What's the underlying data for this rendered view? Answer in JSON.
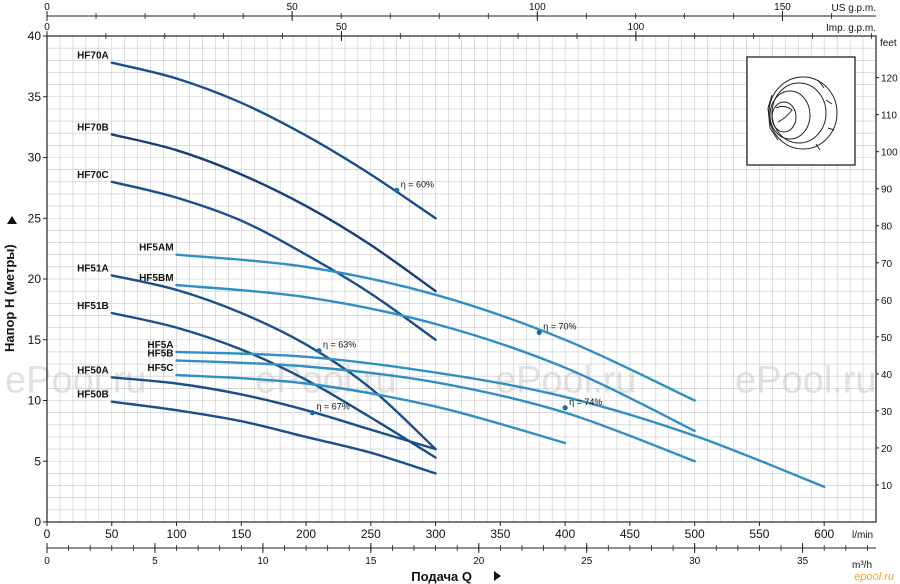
{
  "chart_data": {
    "type": "line",
    "title": "",
    "xlabel": "Подача Q",
    "ylabel": "Напор H (метры)",
    "x_unit": "l/min",
    "x_unit_m3h": "m³/h",
    "right_unit": "feet",
    "top_unit_us": "US g.p.m.",
    "top_unit_imp": "Imp. g.p.m.",
    "xlim": [
      0,
      640
    ],
    "ylim": [
      0,
      40
    ],
    "x_ticks": [
      0,
      50,
      100,
      150,
      200,
      250,
      300,
      350,
      400,
      450,
      500,
      550,
      600
    ],
    "y_ticks": [
      0,
      5,
      10,
      15,
      20,
      25,
      30,
      35,
      40
    ],
    "m3h_ticks": [
      0,
      5,
      10,
      15,
      20,
      25,
      30,
      35
    ],
    "feet_ticks": [
      10,
      20,
      30,
      40,
      50,
      60,
      70,
      80,
      90,
      100,
      110,
      120
    ],
    "us_gpm_ticks": [
      0,
      50,
      100,
      150
    ],
    "imp_gpm_ticks": [
      0,
      50,
      100
    ],
    "grid": true,
    "series": [
      {
        "name": "HF70A",
        "color": "#1a4f8a",
        "x": [
          50,
          100,
          150,
          200,
          250,
          300
        ],
        "y": [
          37.8,
          36.5,
          34.5,
          31.8,
          28.6,
          25
        ]
      },
      {
        "name": "HF70B",
        "color": "#183e78",
        "x": [
          50,
          100,
          150,
          200,
          250,
          300
        ],
        "y": [
          31.9,
          30.6,
          28.6,
          26.0,
          22.8,
          19
        ]
      },
      {
        "name": "HF70C",
        "color": "#1a4f8a",
        "x": [
          50,
          100,
          150,
          200,
          250,
          300
        ],
        "y": [
          28.0,
          26.7,
          24.8,
          22.0,
          18.8,
          15
        ]
      },
      {
        "name": "HF5AM",
        "color": "#2f8fc4",
        "x": [
          100,
          200,
          300,
          400,
          500
        ],
        "y": [
          22.0,
          21.0,
          18.7,
          15.0,
          10.0
        ]
      },
      {
        "name": "HF5BM",
        "color": "#2f8fc4",
        "x": [
          100,
          200,
          300,
          400,
          500
        ],
        "y": [
          19.5,
          18.5,
          16.3,
          12.7,
          7.5
        ]
      },
      {
        "name": "HF51A",
        "color": "#1a4f8a",
        "x": [
          50,
          100,
          150,
          200,
          250,
          300
        ],
        "y": [
          20.3,
          19.1,
          17.2,
          14.6,
          11.0,
          6.0
        ]
      },
      {
        "name": "HF51B",
        "color": "#1a4f8a",
        "x": [
          50,
          100,
          150,
          200,
          250,
          300
        ],
        "y": [
          17.2,
          16.0,
          14.2,
          11.7,
          8.6,
          5.3
        ]
      },
      {
        "name": "HF5A",
        "color": "#2f8fc4",
        "x": [
          100,
          200,
          300,
          400,
          500,
          600
        ],
        "y": [
          14.0,
          13.6,
          12.3,
          10.3,
          7.1,
          2.9
        ]
      },
      {
        "name": "HF5B",
        "color": "#2f8fc4",
        "x": [
          100,
          200,
          300,
          400,
          500
        ],
        "y": [
          13.3,
          12.8,
          11.5,
          9.0,
          5.0
        ]
      },
      {
        "name": "HF5C",
        "color": "#2f8fc4",
        "x": [
          100,
          200,
          300,
          400
        ],
        "y": [
          12.1,
          11.4,
          9.5,
          6.5
        ]
      },
      {
        "name": "HF50A",
        "color": "#1a4f8a",
        "x": [
          50,
          100,
          150,
          200,
          250,
          300
        ],
        "y": [
          11.9,
          11.4,
          10.5,
          9.2,
          7.6,
          6.0
        ]
      },
      {
        "name": "HF50B",
        "color": "#1a4f8a",
        "x": [
          50,
          100,
          150,
          200,
          250,
          300
        ],
        "y": [
          9.9,
          9.2,
          8.3,
          7.0,
          5.7,
          4.0
        ]
      }
    ],
    "annotations": [
      {
        "text": "η = 60%",
        "x": 270,
        "y": 27.3
      },
      {
        "text": "η = 70%",
        "x": 380,
        "y": 15.6
      },
      {
        "text": "η = 63%",
        "x": 210,
        "y": 14.1
      },
      {
        "text": "η = 74%",
        "x": 400,
        "y": 9.4
      },
      {
        "text": "η = 67%",
        "x": 205,
        "y": 9.0
      }
    ],
    "watermark": "ePool.ru",
    "corner_text": "epool.ru"
  }
}
